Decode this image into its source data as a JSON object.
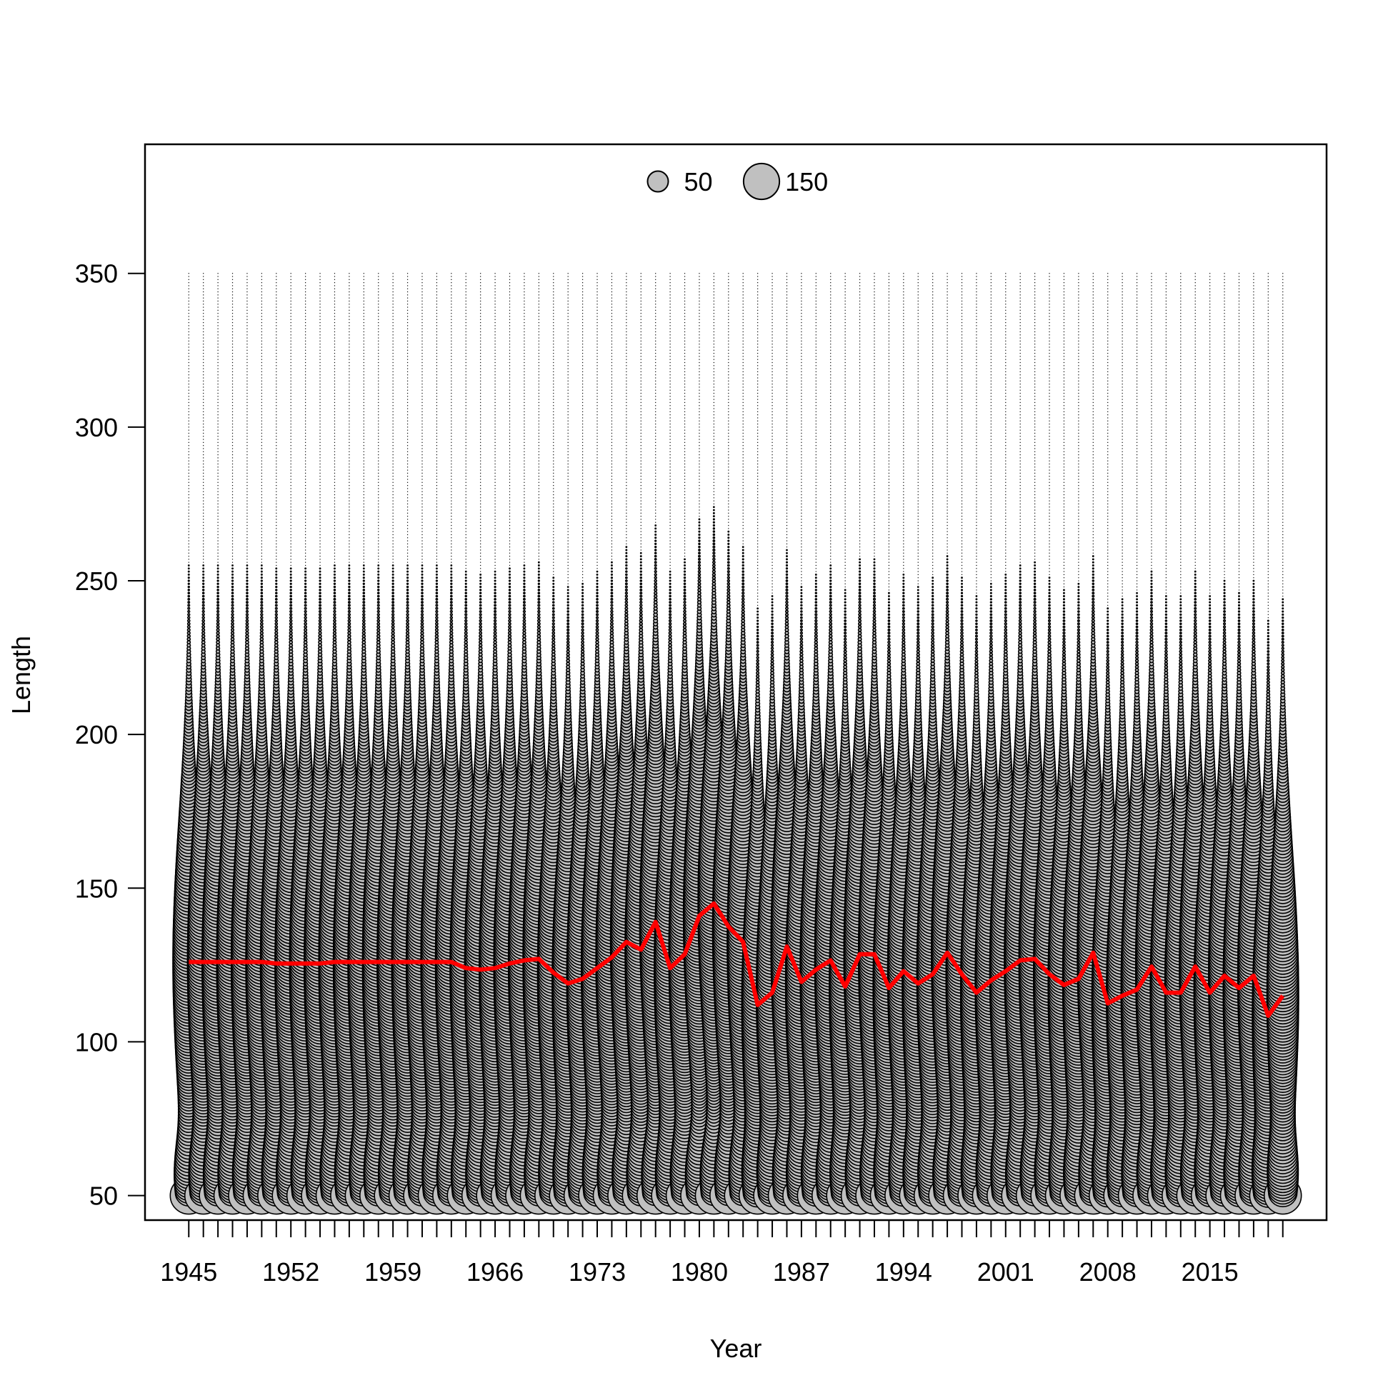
{
  "chart_data": {
    "type": "scatter",
    "title": "",
    "xlabel": "Year",
    "ylabel": "Length",
    "xlim": [
      1942,
      2023
    ],
    "ylim": [
      42,
      392
    ],
    "x_ticks": [
      1945,
      1946,
      1947,
      1948,
      1949,
      1950,
      1951,
      1952,
      1953,
      1954,
      1955,
      1956,
      1957,
      1958,
      1959,
      1960,
      1961,
      1962,
      1963,
      1964,
      1965,
      1966,
      1967,
      1968,
      1969,
      1970,
      1971,
      1972,
      1973,
      1974,
      1975,
      1976,
      1977,
      1978,
      1979,
      1980,
      1981,
      1982,
      1983,
      1984,
      1985,
      1986,
      1987,
      1988,
      1989,
      1990,
      1991,
      1992,
      1993,
      1994,
      1995,
      1996,
      1997,
      1998,
      1999,
      2000,
      2001,
      2002,
      2003,
      2004,
      2005,
      2006,
      2007,
      2008,
      2009,
      2010,
      2011,
      2012,
      2013,
      2014,
      2015,
      2016,
      2017,
      2018,
      2019,
      2020
    ],
    "x_tick_labels": [
      "1945",
      "1952",
      "1959",
      "1966",
      "1973",
      "1980",
      "1987",
      "1994",
      "2001",
      "2008",
      "2015"
    ],
    "y_ticks": [
      50,
      100,
      150,
      200,
      250,
      300,
      350
    ],
    "y_tick_labels": [
      "50",
      "100",
      "150",
      "200",
      "250",
      "300",
      "350"
    ],
    "grid": false,
    "length_range": [
      50,
      350
    ],
    "length_step": 1,
    "size_legend": {
      "position": "top-center",
      "entries": [
        {
          "label": "50",
          "value": 50
        },
        {
          "label": "150",
          "value": 150
        }
      ]
    },
    "series": [
      {
        "name": "",
        "type": "line",
        "color": "#ff0000",
        "x": [
          1945,
          1946,
          1947,
          1948,
          1949,
          1950,
          1951,
          1952,
          1953,
          1954,
          1955,
          1956,
          1957,
          1958,
          1959,
          1960,
          1961,
          1962,
          1963,
          1964,
          1965,
          1966,
          1967,
          1968,
          1969,
          1970,
          1971,
          1972,
          1973,
          1974,
          1975,
          1976,
          1977,
          1978,
          1979,
          1980,
          1981,
          1982,
          1983,
          1984,
          1985,
          1986,
          1987,
          1988,
          1989,
          1990,
          1991,
          1992,
          1993,
          1994,
          1995,
          1996,
          1997,
          1998,
          1999,
          2000,
          2001,
          2002,
          2003,
          2004,
          2005,
          2006,
          2007,
          2008,
          2009,
          2010,
          2011,
          2012,
          2013,
          2014,
          2015,
          2016,
          2017,
          2018,
          2019,
          2020
        ],
        "values": [
          126,
          126,
          126,
          126,
          126,
          126,
          125.5,
          125.5,
          125.5,
          125.5,
          126,
          126,
          126,
          126,
          126,
          126,
          126,
          126,
          126,
          124,
          123.5,
          124,
          125.5,
          126.5,
          127,
          122.5,
          119,
          120.5,
          124,
          127.5,
          132.5,
          130,
          139,
          124,
          128.5,
          141,
          145,
          137.5,
          132.5,
          112,
          116,
          131,
          119.5,
          123.5,
          126.5,
          118,
          128.5,
          128.5,
          117.5,
          123,
          119,
          122,
          129,
          122,
          116,
          120,
          123,
          126.5,
          127,
          122,
          118.5,
          120.5,
          129,
          112.5,
          115,
          117,
          124.5,
          116,
          116,
          124.5,
          116,
          121.5,
          117.5,
          121.5,
          108.5,
          115
        ]
      }
    ],
    "bubble_color": "#c0c0c0",
    "bubble_stroke": "#000000"
  }
}
